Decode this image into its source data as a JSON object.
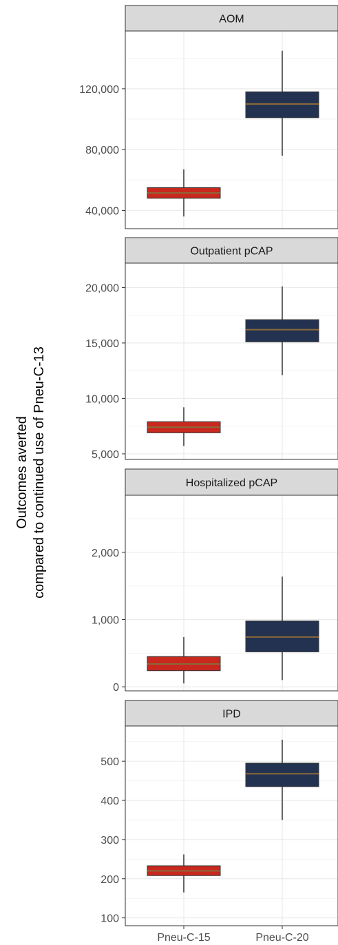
{
  "chart_data": {
    "type": "box",
    "ylabel_lines": [
      "Outcomes averted",
      "compared to continued use of Pneu-C-13"
    ],
    "categories": [
      "Pneu-C-15",
      "Pneu-C-20"
    ],
    "colors": {
      "Pneu-C-15": "#c8281e",
      "Pneu-C-20": "#233250",
      "median_line": "#8a6a3a"
    },
    "panels": [
      {
        "title": "AOM",
        "ylim": [
          28000,
          158000
        ],
        "ticks": [
          40000,
          80000,
          120000
        ],
        "tick_labels": [
          "40,000",
          "80,000",
          "120,000"
        ],
        "boxes": [
          {
            "category": "Pneu-C-15",
            "min": 36000,
            "q1": 48000,
            "median": 51500,
            "q3": 55000,
            "max": 67000
          },
          {
            "category": "Pneu-C-20",
            "min": 76000,
            "q1": 101000,
            "median": 110000,
            "q3": 118000,
            "max": 145000
          }
        ]
      },
      {
        "title": "Outpatient pCAP",
        "ylim": [
          4500,
          22200
        ],
        "ticks": [
          5000,
          10000,
          15000,
          20000
        ],
        "tick_labels": [
          "5,000",
          "10,000",
          "15,000",
          "20,000"
        ],
        "boxes": [
          {
            "category": "Pneu-C-15",
            "min": 5700,
            "q1": 6900,
            "median": 7400,
            "q3": 7900,
            "max": 9200
          },
          {
            "category": "Pneu-C-20",
            "min": 12100,
            "q1": 15100,
            "median": 16200,
            "q3": 17100,
            "max": 20100
          }
        ]
      },
      {
        "title": "Hospitalized pCAP",
        "ylim": [
          -60,
          2850
        ],
        "ticks": [
          0,
          1000,
          2000
        ],
        "tick_labels": [
          "0",
          "1,000",
          "2,000"
        ],
        "boxes": [
          {
            "category": "Pneu-C-15",
            "min": 50,
            "q1": 240,
            "median": 340,
            "q3": 450,
            "max": 740
          },
          {
            "category": "Pneu-C-20",
            "min": 100,
            "q1": 520,
            "median": 740,
            "q3": 980,
            "max": 1640
          }
        ]
      },
      {
        "title": "IPD",
        "ylim": [
          80,
          590
        ],
        "ticks": [
          100,
          200,
          300,
          400,
          500
        ],
        "tick_labels": [
          "100",
          "200",
          "300",
          "400",
          "500"
        ],
        "boxes": [
          {
            "category": "Pneu-C-15",
            "min": 165,
            "q1": 208,
            "median": 220,
            "q3": 233,
            "max": 262
          },
          {
            "category": "Pneu-C-20",
            "min": 350,
            "q1": 435,
            "median": 468,
            "q3": 495,
            "max": 555
          }
        ]
      }
    ]
  }
}
